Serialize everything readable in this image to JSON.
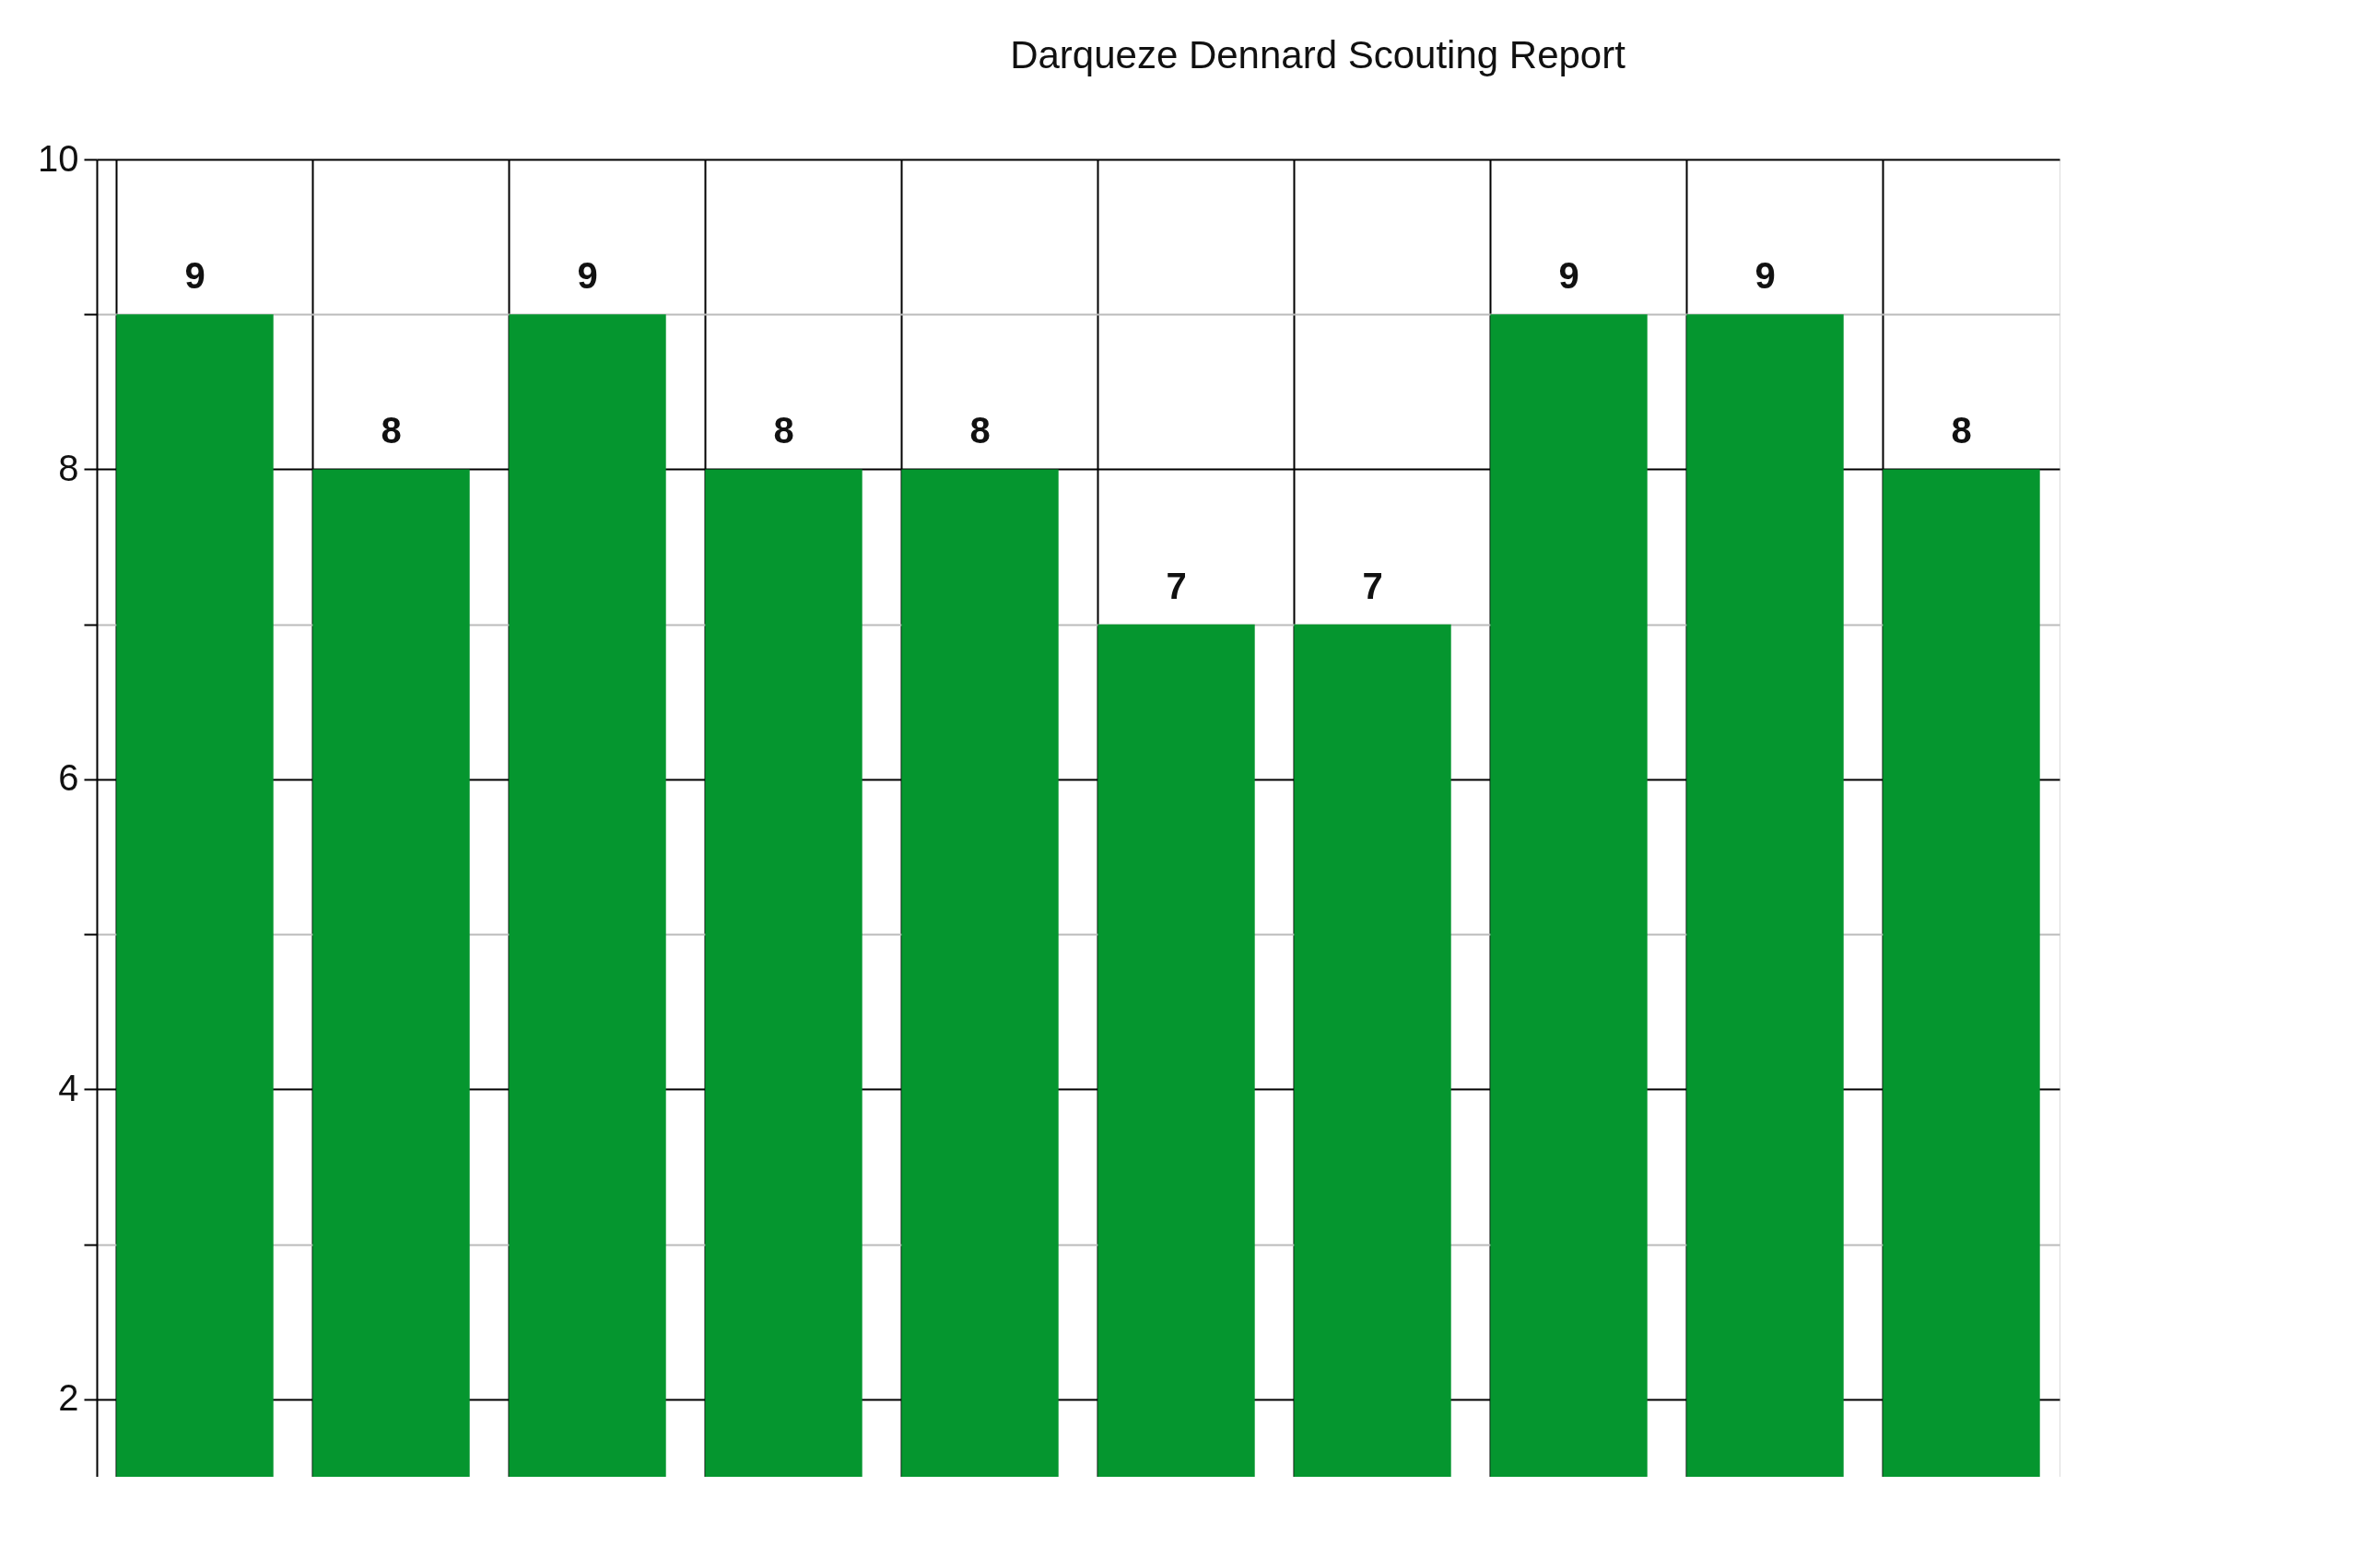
{
  "chart_data": {
    "type": "bar",
    "title": "Darqueze Dennard Scouting Report",
    "categories": [
      null,
      null,
      null,
      null,
      null,
      null,
      null,
      null,
      null,
      null
    ],
    "values": [
      9,
      8,
      9,
      8,
      8,
      7,
      7,
      9,
      9,
      8
    ],
    "color": "#05962f",
    "ylim": [
      1.5,
      10
    ],
    "yticks": [
      2,
      {
        "value": 3,
        "label": null
      },
      4,
      {
        "value": 5,
        "label": null
      },
      6,
      {
        "value": 7,
        "label": null
      },
      8,
      {
        "value": 9,
        "label": null
      },
      10
    ],
    "grid": true,
    "data_labels": true
  }
}
